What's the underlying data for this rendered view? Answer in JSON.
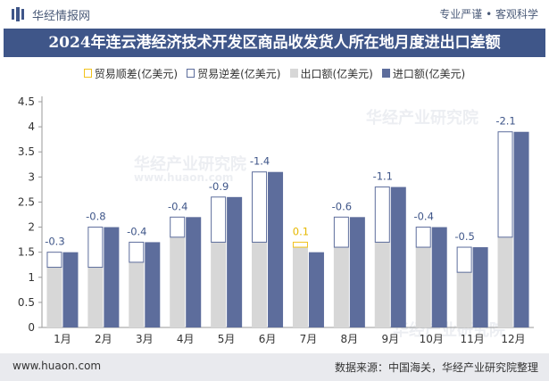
{
  "header": {
    "brand": "华经情报网",
    "slogan": "专业严谨 • 客观科学"
  },
  "watermarks": [
    "华经产业研究院",
    "www.huaon.com",
    "华经产业研究院",
    "华经产业研究院"
  ],
  "footer": {
    "url": "www.huaon.com",
    "source": "数据来源：中国海关，华经产业研究院整理"
  },
  "colors": {
    "title_bg": "#3f5689",
    "export": "#d7d7d7",
    "import": "#5d6d9c",
    "surplus_border": "#f2c21b",
    "deficit_border": "#5d6d9c",
    "surplus_label": "#e6b800",
    "deficit_label": "#3f5689"
  },
  "chart_data": {
    "type": "bar",
    "title": "2024年连云港经济技术开发区商品收发货人所在地月度进出口差额",
    "categories": [
      "1月",
      "2月",
      "3月",
      "4月",
      "5月",
      "6月",
      "7月",
      "8月",
      "9月",
      "10月",
      "11月",
      "12月"
    ],
    "series": [
      {
        "name": "贸易顺差(亿美元)",
        "values": [
          null,
          null,
          null,
          null,
          null,
          null,
          0.1,
          null,
          null,
          null,
          null,
          null
        ]
      },
      {
        "name": "贸易逆差(亿美元)",
        "values": [
          -0.3,
          -0.8,
          -0.4,
          -0.4,
          -0.9,
          -1.4,
          null,
          -0.6,
          -1.1,
          -0.4,
          -0.5,
          -2.1
        ]
      },
      {
        "name": "出口额(亿美元)",
        "values": [
          1.2,
          1.2,
          1.3,
          1.8,
          1.7,
          1.7,
          1.6,
          1.6,
          1.7,
          1.6,
          1.1,
          1.8
        ]
      },
      {
        "name": "进口额(亿美元)",
        "values": [
          1.5,
          2.0,
          1.7,
          2.2,
          2.6,
          3.1,
          1.5,
          2.2,
          2.8,
          2.0,
          1.6,
          3.9
        ]
      }
    ],
    "data_labels": [
      "-0.3",
      "-0.8",
      "-0.4",
      "-0.4",
      "-0.9",
      "-1.4",
      "0.1",
      "-0.6",
      "-1.1",
      "-0.4",
      "-0.5",
      "-2.1"
    ],
    "yticks": [
      "0",
      "0.5",
      "1",
      "1.5",
      "2",
      "2.5",
      "3",
      "3.5",
      "4",
      "4.5"
    ],
    "ylim": [
      0,
      4.5
    ],
    "grid": false,
    "legend_position": "top"
  }
}
